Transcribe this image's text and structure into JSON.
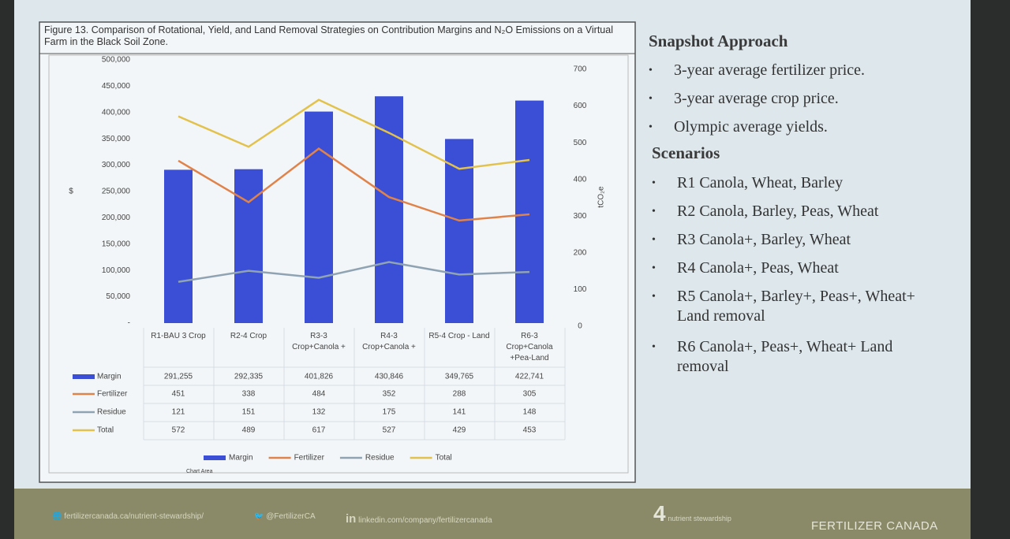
{
  "chart_data": {
    "type": "bar",
    "title": "Figure 13. Comparison of Rotational, Yield, and Land Removal Strategies on Contribution Margins and N₂O Emissions on a Virtual Farm in the Black Soil Zone.",
    "y_label": "$",
    "y2_label": "tCO₂e",
    "annotation": "Chart Area",
    "legend": "bottom",
    "categories": [
      "R1-BAU 3 Crop",
      "R2-4 Crop",
      "R3-3 Crop+Canola +",
      "R4-3 Crop+Canola +",
      "R5-4 Crop - Land",
      "R6-3 Crop+Canola +Pea-Land"
    ],
    "series": [
      {
        "name": "Margin",
        "type": "bar",
        "color": "#3b4fd6",
        "values": [
          291255,
          292335,
          401826,
          430846,
          349765,
          422741
        ],
        "value_labels": [
          "291,255",
          "292,335",
          "401,826",
          "430,846",
          "349,765",
          "422,741"
        ]
      },
      {
        "name": "Fertilizer",
        "type": "line",
        "axis": "y2",
        "color": "#e0834a",
        "values": [
          451,
          338,
          484,
          352,
          288,
          305
        ]
      },
      {
        "name": "Residue",
        "type": "line",
        "axis": "y2",
        "color": "#8fa3b3",
        "values": [
          121,
          151,
          132,
          175,
          141,
          148
        ]
      },
      {
        "name": "Total",
        "type": "line",
        "axis": "y2",
        "color": "#e2c24c",
        "values": [
          572,
          489,
          617,
          527,
          429,
          453
        ]
      }
    ],
    "ylim": [
      0,
      500000
    ],
    "yticks": [
      {
        "value": 0,
        "label": "-"
      },
      {
        "value": 50000,
        "label": "50,000"
      },
      {
        "value": 100000,
        "label": "100,000"
      },
      {
        "value": 150000,
        "label": "150,000"
      },
      {
        "value": 200000,
        "label": "200,000"
      },
      {
        "value": 250000,
        "label": "250,000"
      },
      {
        "value": 300000,
        "label": "300,000"
      },
      {
        "value": 350000,
        "label": "350,000"
      },
      {
        "value": 400000,
        "label": "400,000"
      },
      {
        "value": 450000,
        "label": "450,000"
      },
      {
        "value": 500000,
        "label": "500,000"
      }
    ],
    "y2lim": [
      0,
      700
    ],
    "y2ticks": [
      0,
      100,
      200,
      300,
      400,
      500,
      600,
      700
    ],
    "grid": false
  },
  "slide": {
    "heading1": "Snapshot Approach",
    "bullets1": [
      "3-year average fertilizer price.",
      "3-year average crop price.",
      "Olympic average yields."
    ],
    "heading2": "Scenarios",
    "bullets2": [
      "R1 Canola, Wheat, Barley",
      "R2 Canola, Barley, Peas, Wheat",
      "R3 Canola+, Barley, Wheat",
      "R4 Canola+, Peas, Wheat",
      "R5 Canola+, Barley+, Peas+, Wheat+ Land removal",
      "R6 Canola+, Peas+, Wheat+ Land removal"
    ]
  },
  "footer": {
    "website": "fertilizercanada.ca/nutrient-stewardship/",
    "twitter": "@FertilizerCA",
    "linkedin": "linkedin.com/company/fertilizercanada",
    "logo": "nutrient stewardship",
    "brand": "FERTILIZER CANADA"
  }
}
